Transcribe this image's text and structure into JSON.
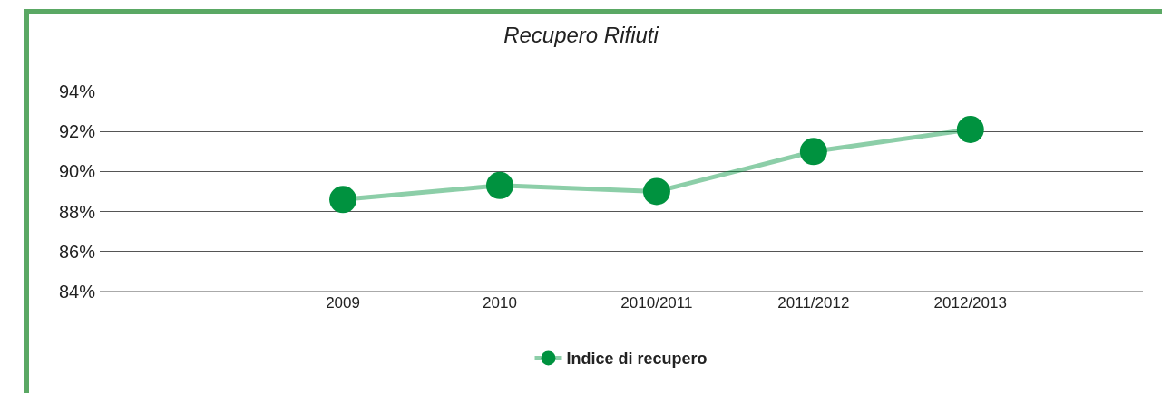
{
  "chart_data": {
    "type": "line",
    "title": "Recupero Rifiuti",
    "categories": [
      "2009",
      "2010",
      "2010/2011",
      "2011/2012",
      "2012/2013"
    ],
    "series": [
      {
        "name": "Indice di recupero",
        "color": "#00923f",
        "values": [
          88.6,
          89.3,
          89.0,
          91.0,
          92.1
        ]
      }
    ],
    "ylim": [
      84,
      94
    ],
    "yticks": [
      {
        "value": 84,
        "label": "84%"
      },
      {
        "value": 86,
        "label": "86%"
      },
      {
        "value": 88,
        "label": "88%"
      },
      {
        "value": 90,
        "label": "90%"
      },
      {
        "value": 92,
        "label": "92%"
      },
      {
        "value": 94,
        "label": "94%"
      }
    ],
    "grid": "y",
    "legend": "bottom",
    "marker": "circle",
    "line_style": "solid"
  }
}
